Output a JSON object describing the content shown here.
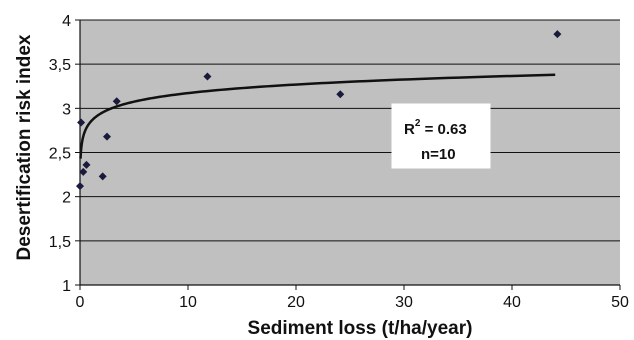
{
  "chart_data": {
    "type": "scatter",
    "xlabel": "Sediment loss (t/ha/year)",
    "ylabel": "Desertification risk index",
    "xlim": [
      0,
      50
    ],
    "ylim": [
      1,
      4
    ],
    "x_ticks": [
      "0",
      "10",
      "20",
      "30",
      "40",
      "50"
    ],
    "y_ticks": [
      "1",
      "1,5",
      "2",
      "2,5",
      "3",
      "3,5",
      "4"
    ],
    "grid": "horizontal",
    "plot_background": "#c0c0c0",
    "marker_color": "#1a1a3a",
    "trendline": {
      "type": "logarithmic",
      "a": 2.85,
      "b": 0.14,
      "x_range": [
        0.05,
        44
      ]
    },
    "points": [
      {
        "x": 0.0,
        "y": 2.12
      },
      {
        "x": 0.1,
        "y": 2.84
      },
      {
        "x": 0.3,
        "y": 2.28
      },
      {
        "x": 0.6,
        "y": 2.36
      },
      {
        "x": 2.1,
        "y": 2.23
      },
      {
        "x": 2.5,
        "y": 2.68
      },
      {
        "x": 3.4,
        "y": 3.08
      },
      {
        "x": 11.8,
        "y": 3.36
      },
      {
        "x": 24.1,
        "y": 3.16
      },
      {
        "x": 44.2,
        "y": 3.84
      }
    ],
    "annotation": {
      "r2_base": "R",
      "r2_sup": "2",
      "r2_value": " = 0.63",
      "n_text": "n=10"
    }
  }
}
